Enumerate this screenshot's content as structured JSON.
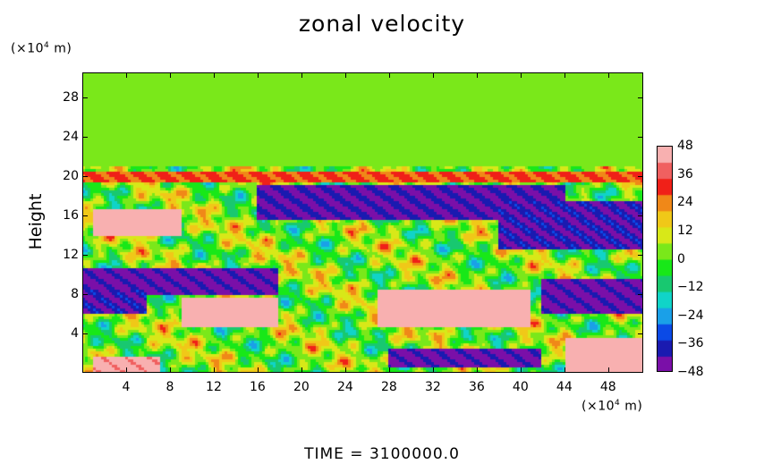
{
  "chart_data": {
    "type": "heatmap",
    "title": "zonal velocity",
    "ylabel": "Height",
    "y_unit_prefix": "(×10",
    "y_unit_exp": "4",
    "y_unit_suffix": " m)",
    "x_unit_prefix": "(×10",
    "x_unit_exp": "4",
    "x_unit_suffix": " m)",
    "xlim": [
      0,
      51.2
    ],
    "ylim": [
      0,
      30.5
    ],
    "x_ticks": [
      4,
      8,
      12,
      16,
      20,
      24,
      28,
      32,
      36,
      40,
      44,
      48
    ],
    "y_ticks": [
      4,
      8,
      12,
      16,
      20,
      24,
      28
    ],
    "colorbar": {
      "min": -48,
      "max": 48,
      "ticks": [
        48,
        36,
        24,
        12,
        0,
        -12,
        -24,
        -36,
        -48
      ],
      "colors": [
        "#7a0fa8",
        "#1a1ab0",
        "#0b4ae6",
        "#1aa0e8",
        "#10d4c8",
        "#18c870",
        "#18e818",
        "#7ae81a",
        "#d8e818",
        "#f0c818",
        "#f08818",
        "#f02018",
        "#f06060",
        "#f8b0b0"
      ]
    },
    "regions": [
      {
        "x": [
          0,
          51.2
        ],
        "y": [
          21,
          30.5
        ],
        "u": 2
      },
      {
        "x": [
          0,
          51.2
        ],
        "y": [
          19.3,
          20.3
        ],
        "u": 28
      },
      {
        "x": [
          1,
          9
        ],
        "y": [
          14,
          16.5
        ],
        "u": 50
      },
      {
        "x": [
          16,
          44
        ],
        "y": [
          15.5,
          19
        ],
        "u": -42
      },
      {
        "x": [
          38,
          51.2
        ],
        "y": [
          12.5,
          17.5
        ],
        "u": -40
      },
      {
        "x": [
          0,
          18
        ],
        "y": [
          8,
          10.5
        ],
        "u": -44
      },
      {
        "x": [
          0,
          6
        ],
        "y": [
          6,
          8.5
        ],
        "u": -40
      },
      {
        "x": [
          9,
          18
        ],
        "y": [
          4.5,
          7.5
        ],
        "u": 48
      },
      {
        "x": [
          27,
          41
        ],
        "y": [
          4.5,
          8.5
        ],
        "u": 48
      },
      {
        "x": [
          42,
          51.2
        ],
        "y": [
          6,
          9.5
        ],
        "u": -44
      },
      {
        "x": [
          28,
          42
        ],
        "y": [
          0.5,
          2.5
        ],
        "u": -44
      },
      {
        "x": [
          44,
          51.2
        ],
        "y": [
          0,
          3.5
        ],
        "u": 48
      },
      {
        "x": [
          1,
          7
        ],
        "y": [
          0,
          1.5
        ],
        "u": 46
      }
    ]
  },
  "footer": {
    "time_label": "TIME  =  3100000.0"
  }
}
